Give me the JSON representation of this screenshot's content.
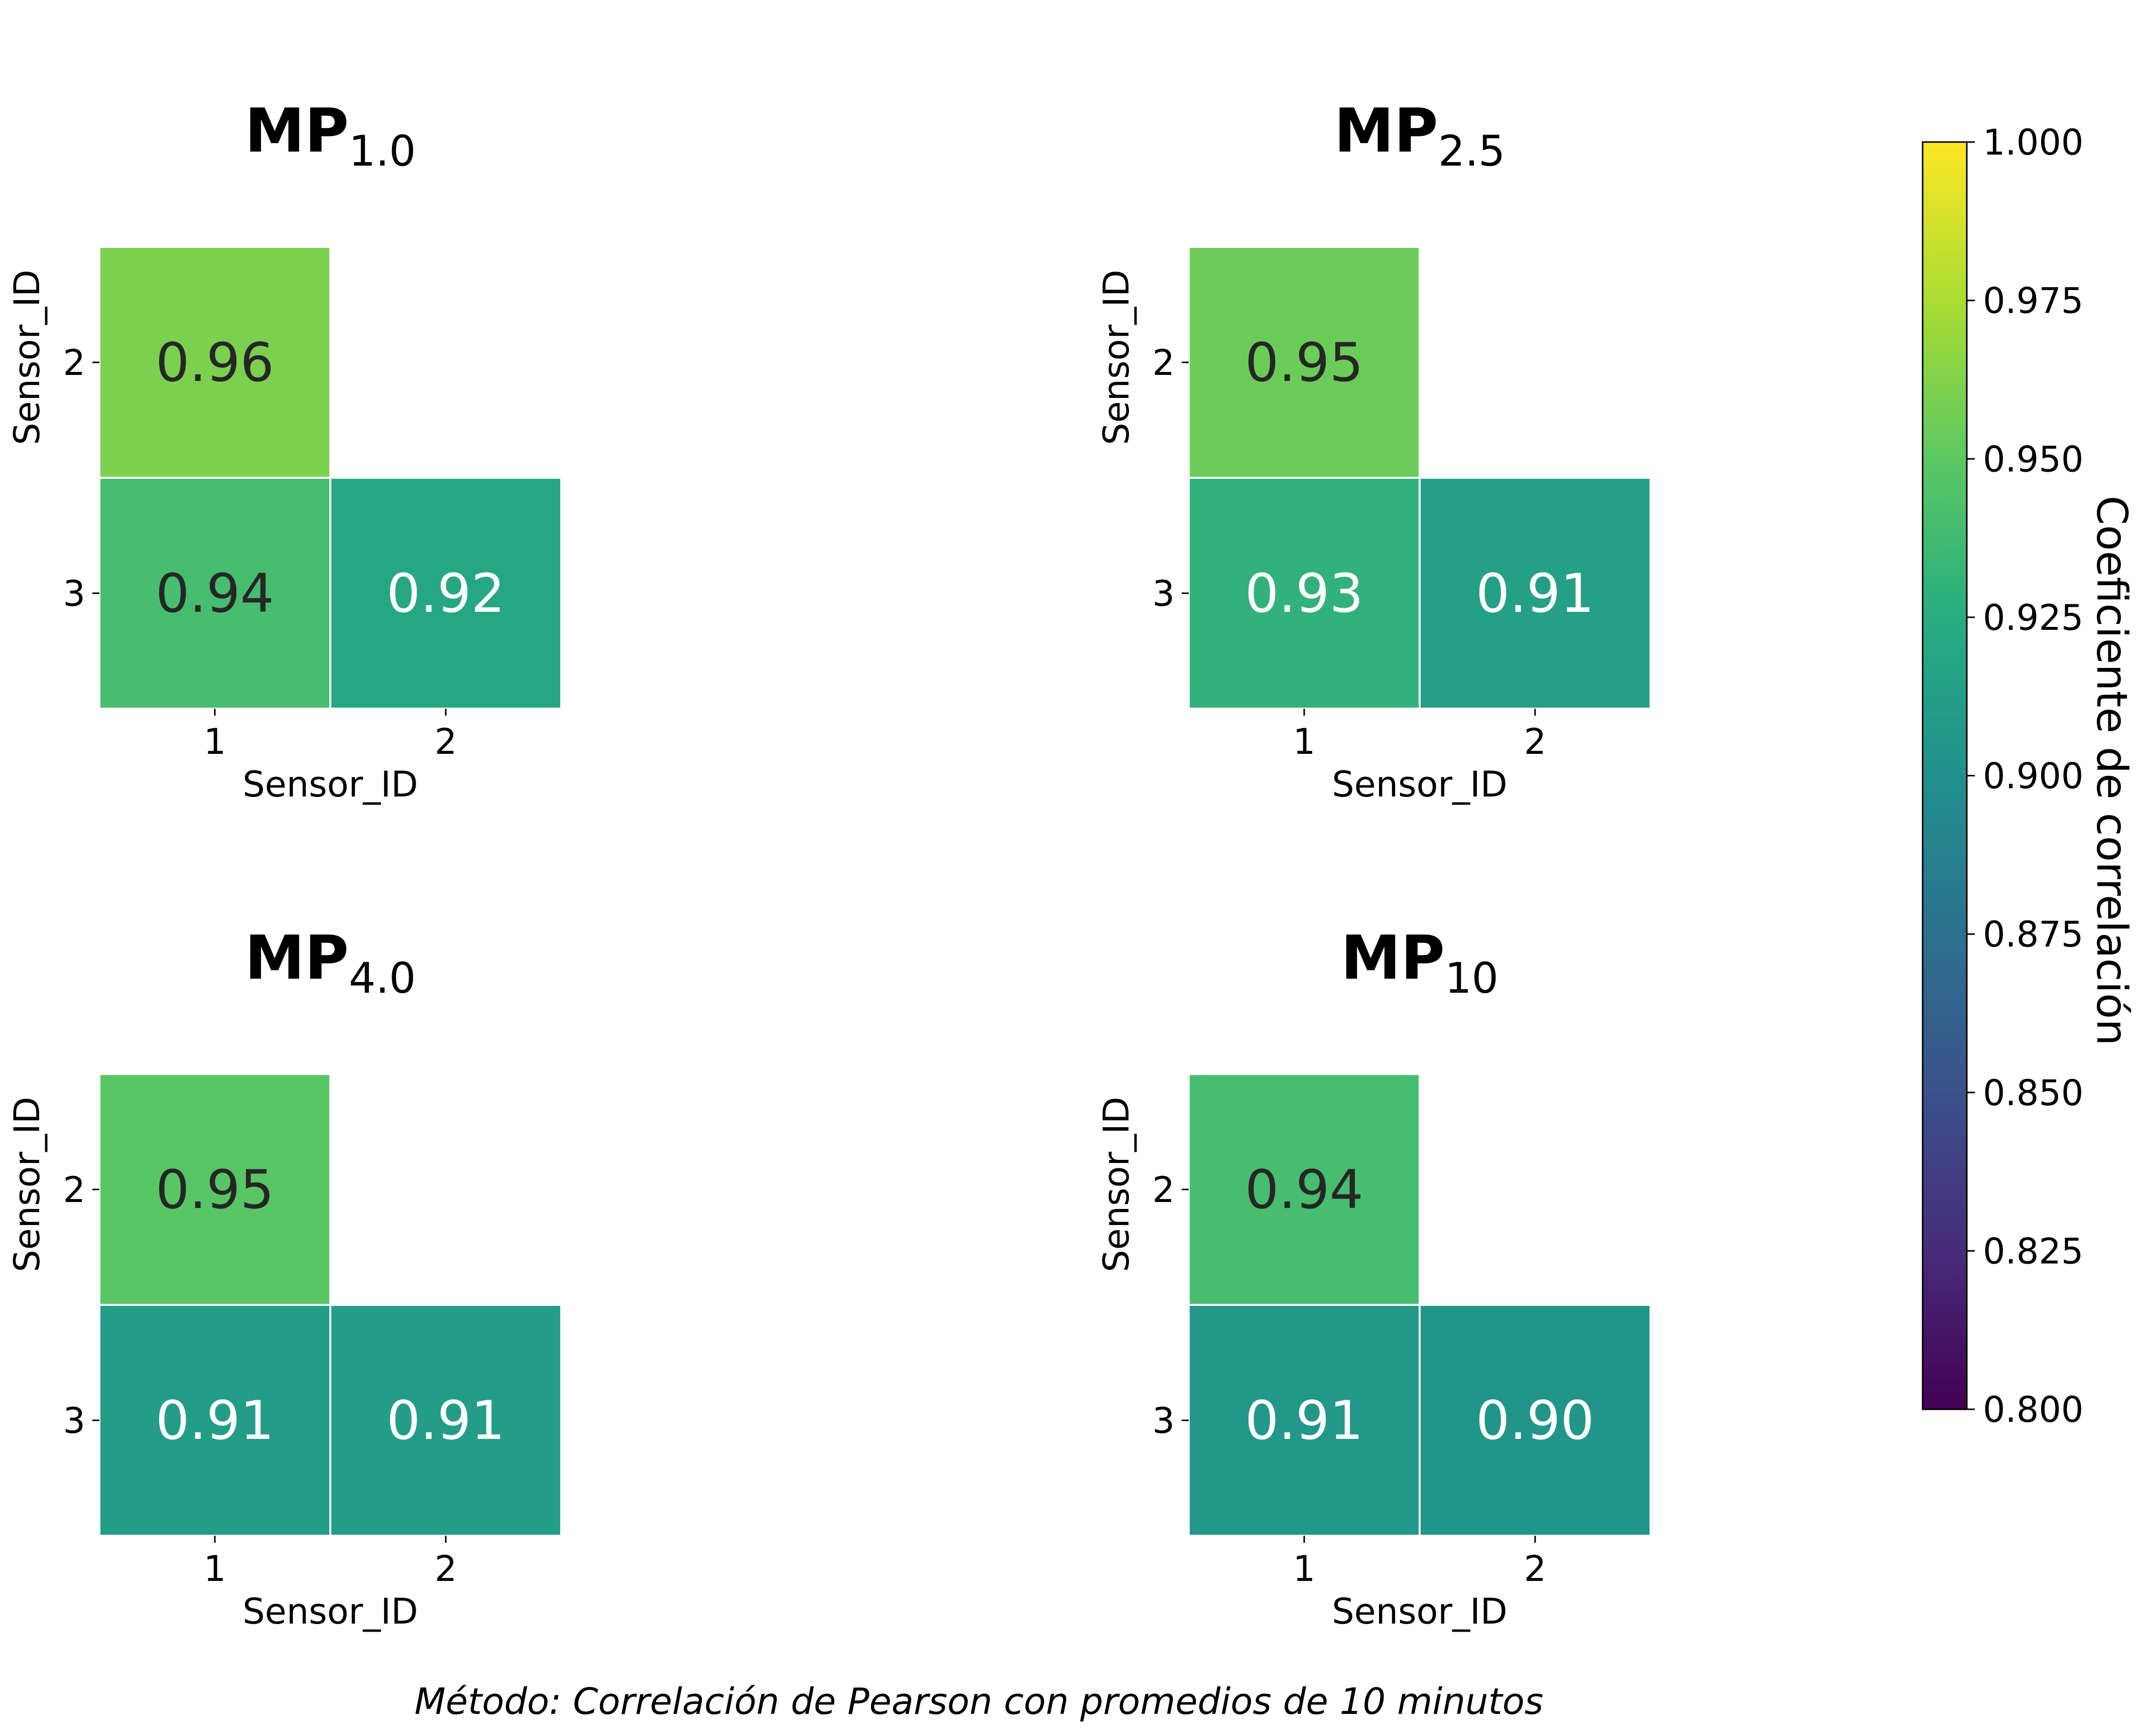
{
  "chart_data": {
    "type": "heatmap",
    "colormap": "viridis",
    "cell_border_color": "#ffffff",
    "panels": [
      {
        "title_main": "MP",
        "title_sub": "1.0",
        "xlabel": "Sensor_ID",
        "ylabel": "Sensor_ID",
        "x_categories": [
          "1",
          "2"
        ],
        "y_categories": [
          "2",
          "3"
        ],
        "cells": [
          {
            "x": "1",
            "y": "2",
            "value": 0.96,
            "label": "0.96"
          },
          {
            "x": "1",
            "y": "3",
            "value": 0.94,
            "label": "0.94"
          },
          {
            "x": "2",
            "y": "3",
            "value": 0.92,
            "label": "0.92"
          }
        ]
      },
      {
        "title_main": "MP",
        "title_sub": "2.5",
        "xlabel": "Sensor_ID",
        "ylabel": "Sensor_ID",
        "x_categories": [
          "1",
          "2"
        ],
        "y_categories": [
          "2",
          "3"
        ],
        "cells": [
          {
            "x": "1",
            "y": "2",
            "value": 0.955,
            "label": "0.95"
          },
          {
            "x": "1",
            "y": "3",
            "value": 0.93,
            "label": "0.93"
          },
          {
            "x": "2",
            "y": "3",
            "value": 0.914,
            "label": "0.91"
          }
        ]
      },
      {
        "title_main": "MP",
        "title_sub": "4.0",
        "xlabel": "Sensor_ID",
        "ylabel": "Sensor_ID",
        "x_categories": [
          "1",
          "2"
        ],
        "y_categories": [
          "2",
          "3"
        ],
        "cells": [
          {
            "x": "1",
            "y": "2",
            "value": 0.948,
            "label": "0.95"
          },
          {
            "x": "1",
            "y": "3",
            "value": 0.911,
            "label": "0.91"
          },
          {
            "x": "2",
            "y": "3",
            "value": 0.911,
            "label": "0.91"
          }
        ]
      },
      {
        "title_main": "MP",
        "title_sub": "10",
        "xlabel": "Sensor_ID",
        "ylabel": "Sensor_ID",
        "x_categories": [
          "1",
          "2"
        ],
        "y_categories": [
          "2",
          "3"
        ],
        "cells": [
          {
            "x": "1",
            "y": "2",
            "value": 0.94,
            "label": "0.94"
          },
          {
            "x": "1",
            "y": "3",
            "value": 0.906,
            "label": "0.91"
          },
          {
            "x": "2",
            "y": "3",
            "value": 0.904,
            "label": "0.90"
          }
        ]
      }
    ],
    "colorbar": {
      "label": "Coeficiente de correlación",
      "range": [
        0.8,
        1.0
      ],
      "ticks": [
        "0.800",
        "0.825",
        "0.850",
        "0.875",
        "0.900",
        "0.925",
        "0.950",
        "0.975",
        "1.000"
      ]
    },
    "caption": "Método: Correlación de Pearson con promedios de 10 minutos"
  }
}
